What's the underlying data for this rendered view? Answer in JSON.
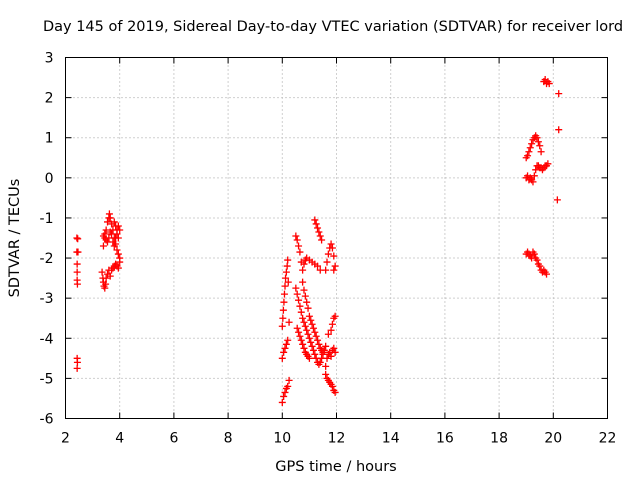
{
  "chart_data": {
    "type": "scatter",
    "title": "Day 145 of 2019, Sidereal Day-to-day VTEC variation (SDTVAR) for receiver lord",
    "xlabel": "GPS time / hours",
    "ylabel": "SDTVAR / TECUs",
    "xlim": [
      2,
      22
    ],
    "ylim": [
      -6,
      3
    ],
    "xticks": [
      2,
      4,
      6,
      8,
      10,
      12,
      14,
      16,
      18,
      20,
      22
    ],
    "xtick_labels": [
      "2",
      "4",
      "6",
      "8",
      "10",
      "12",
      "14",
      "16",
      "18",
      "20",
      "22"
    ],
    "yticks": [
      -6,
      -5,
      -4,
      -3,
      -2,
      -1,
      0,
      1,
      2,
      3
    ],
    "ytick_labels": [
      "-6",
      "-5",
      "-4",
      "-3",
      "-2",
      "-1",
      "0",
      "1",
      "2",
      "3"
    ],
    "grid": true,
    "marker": "+",
    "marker_color": "#ff0000",
    "series": [
      {
        "name": "SDTVAR",
        "points": [
          [
            2.42,
            -1.5
          ],
          [
            2.45,
            -1.52
          ],
          [
            2.42,
            -1.85
          ],
          [
            2.46,
            -1.85
          ],
          [
            2.43,
            -2.15
          ],
          [
            2.43,
            -2.35
          ],
          [
            2.43,
            -2.55
          ],
          [
            2.44,
            -2.65
          ],
          [
            2.43,
            -4.5
          ],
          [
            2.44,
            -4.6
          ],
          [
            2.43,
            -4.75
          ],
          [
            3.35,
            -2.35
          ],
          [
            3.38,
            -2.5
          ],
          [
            3.4,
            -2.6
          ],
          [
            3.42,
            -2.7
          ],
          [
            3.45,
            -2.75
          ],
          [
            3.48,
            -2.65
          ],
          [
            3.5,
            -2.5
          ],
          [
            3.55,
            -2.4
          ],
          [
            3.6,
            -2.3
          ],
          [
            3.65,
            -2.45
          ],
          [
            3.7,
            -2.3
          ],
          [
            3.75,
            -2.25
          ],
          [
            3.8,
            -2.2
          ],
          [
            3.85,
            -2.15
          ],
          [
            3.9,
            -2.2
          ],
          [
            3.95,
            -2.25
          ],
          [
            4.0,
            -2.1
          ],
          [
            3.4,
            -1.7
          ],
          [
            3.45,
            -1.5
          ],
          [
            3.5,
            -1.3
          ],
          [
            3.55,
            -1.1
          ],
          [
            3.6,
            -1.0
          ],
          [
            3.62,
            -0.9
          ],
          [
            3.65,
            -1.0
          ],
          [
            3.7,
            -1.15
          ],
          [
            3.75,
            -1.3
          ],
          [
            3.8,
            -1.5
          ],
          [
            3.85,
            -1.65
          ],
          [
            3.9,
            -1.8
          ],
          [
            3.95,
            -1.9
          ],
          [
            4.0,
            -2.0
          ],
          [
            3.4,
            -1.45
          ],
          [
            3.45,
            -1.4
          ],
          [
            3.5,
            -1.55
          ],
          [
            3.55,
            -1.6
          ],
          [
            3.6,
            -1.5
          ],
          [
            3.65,
            -1.35
          ],
          [
            3.7,
            -1.4
          ],
          [
            3.75,
            -1.6
          ],
          [
            3.8,
            -1.7
          ],
          [
            3.85,
            -1.5
          ],
          [
            3.9,
            -1.3
          ],
          [
            3.95,
            -1.2
          ],
          [
            4.0,
            -1.3
          ],
          [
            3.8,
            -1.1
          ],
          [
            3.85,
            -1.2
          ],
          [
            3.9,
            -1.4
          ],
          [
            3.95,
            -1.5
          ],
          [
            10.0,
            -5.6
          ],
          [
            10.05,
            -5.45
          ],
          [
            10.1,
            -5.35
          ],
          [
            10.15,
            -5.25
          ],
          [
            10.2,
            -5.2
          ],
          [
            10.25,
            -5.05
          ],
          [
            10.0,
            -4.5
          ],
          [
            10.05,
            -4.35
          ],
          [
            10.1,
            -4.25
          ],
          [
            10.15,
            -4.15
          ],
          [
            10.2,
            -4.05
          ],
          [
            10.0,
            -3.7
          ],
          [
            10.02,
            -3.5
          ],
          [
            10.04,
            -3.3
          ],
          [
            10.06,
            -3.1
          ],
          [
            10.08,
            -2.9
          ],
          [
            10.1,
            -2.7
          ],
          [
            10.12,
            -2.5
          ],
          [
            10.15,
            -2.35
          ],
          [
            10.18,
            -2.2
          ],
          [
            10.2,
            -2.05
          ],
          [
            10.22,
            -2.6
          ],
          [
            10.25,
            -3.6
          ],
          [
            10.5,
            -1.45
          ],
          [
            10.55,
            -1.55
          ],
          [
            10.6,
            -1.7
          ],
          [
            10.65,
            -1.85
          ],
          [
            10.7,
            -2.1
          ],
          [
            10.75,
            -2.3
          ],
          [
            10.8,
            -2.15
          ],
          [
            10.85,
            -2.05
          ],
          [
            10.9,
            -2.0
          ],
          [
            11.0,
            -2.05
          ],
          [
            11.1,
            -2.1
          ],
          [
            11.2,
            -2.15
          ],
          [
            11.3,
            -2.2
          ],
          [
            11.4,
            -2.3
          ],
          [
            10.5,
            -2.75
          ],
          [
            10.55,
            -2.9
          ],
          [
            10.6,
            -3.05
          ],
          [
            10.65,
            -3.2
          ],
          [
            10.7,
            -3.35
          ],
          [
            10.75,
            -3.5
          ],
          [
            10.8,
            -3.6
          ],
          [
            10.85,
            -3.7
          ],
          [
            10.9,
            -3.8
          ],
          [
            10.95,
            -3.9
          ],
          [
            11.0,
            -4.0
          ],
          [
            11.05,
            -4.1
          ],
          [
            11.1,
            -4.2
          ],
          [
            11.15,
            -4.3
          ],
          [
            11.2,
            -4.4
          ],
          [
            11.25,
            -4.5
          ],
          [
            11.3,
            -4.6
          ],
          [
            11.35,
            -4.65
          ],
          [
            11.4,
            -4.6
          ],
          [
            11.45,
            -4.5
          ],
          [
            11.5,
            -4.4
          ],
          [
            10.55,
            -3.75
          ],
          [
            10.6,
            -3.85
          ],
          [
            10.65,
            -3.95
          ],
          [
            10.7,
            -4.05
          ],
          [
            10.75,
            -4.15
          ],
          [
            10.8,
            -4.25
          ],
          [
            10.85,
            -4.35
          ],
          [
            10.9,
            -4.4
          ],
          [
            10.95,
            -4.45
          ],
          [
            11.0,
            -4.5
          ],
          [
            10.75,
            -2.6
          ],
          [
            10.8,
            -2.8
          ],
          [
            10.85,
            -2.95
          ],
          [
            10.9,
            -3.1
          ],
          [
            10.95,
            -3.25
          ],
          [
            11.0,
            -3.45
          ],
          [
            11.05,
            -3.55
          ],
          [
            11.1,
            -3.65
          ],
          [
            11.15,
            -3.75
          ],
          [
            11.2,
            -3.85
          ],
          [
            11.25,
            -3.95
          ],
          [
            11.3,
            -4.05
          ],
          [
            11.35,
            -4.15
          ],
          [
            11.4,
            -4.25
          ],
          [
            11.45,
            -4.3
          ],
          [
            11.5,
            -4.35
          ],
          [
            11.55,
            -4.3
          ],
          [
            11.6,
            -4.2
          ],
          [
            11.2,
            -1.05
          ],
          [
            11.25,
            -1.15
          ],
          [
            11.3,
            -1.25
          ],
          [
            11.35,
            -1.35
          ],
          [
            11.4,
            -1.45
          ],
          [
            11.45,
            -1.55
          ],
          [
            11.6,
            -2.3
          ],
          [
            11.65,
            -2.1
          ],
          [
            11.7,
            -1.9
          ],
          [
            11.75,
            -1.75
          ],
          [
            11.8,
            -1.65
          ],
          [
            11.85,
            -1.75
          ],
          [
            11.9,
            -1.95
          ],
          [
            11.95,
            -2.2
          ],
          [
            11.9,
            -2.3
          ],
          [
            11.6,
            -4.7
          ],
          [
            11.65,
            -4.5
          ],
          [
            11.7,
            -4.4
          ],
          [
            11.75,
            -4.35
          ],
          [
            11.8,
            -4.45
          ],
          [
            11.85,
            -4.3
          ],
          [
            11.9,
            -4.25
          ],
          [
            11.95,
            -4.35
          ],
          [
            11.6,
            -4.9
          ],
          [
            11.65,
            -5.0
          ],
          [
            11.7,
            -5.05
          ],
          [
            11.75,
            -5.1
          ],
          [
            11.8,
            -5.15
          ],
          [
            11.85,
            -5.2
          ],
          [
            11.9,
            -5.3
          ],
          [
            11.95,
            -5.35
          ],
          [
            11.8,
            -3.8
          ],
          [
            11.85,
            -3.65
          ],
          [
            11.9,
            -3.5
          ],
          [
            11.95,
            -3.45
          ],
          [
            11.7,
            -3.9
          ],
          [
            19.0,
            0.5
          ],
          [
            19.05,
            0.55
          ],
          [
            19.1,
            0.65
          ],
          [
            19.15,
            0.75
          ],
          [
            19.2,
            0.85
          ],
          [
            19.25,
            0.95
          ],
          [
            19.3,
            1.0
          ],
          [
            19.35,
            1.05
          ],
          [
            19.4,
            1.0
          ],
          [
            19.45,
            0.9
          ],
          [
            19.5,
            0.8
          ],
          [
            19.55,
            0.65
          ],
          [
            19.0,
            0.0
          ],
          [
            19.05,
            0.05
          ],
          [
            19.1,
            -0.05
          ],
          [
            19.15,
            0.0
          ],
          [
            19.2,
            -0.05
          ],
          [
            19.25,
            -0.1
          ],
          [
            19.3,
            0.05
          ],
          [
            19.35,
            0.2
          ],
          [
            19.4,
            0.3
          ],
          [
            19.45,
            0.3
          ],
          [
            19.5,
            0.25
          ],
          [
            19.55,
            0.25
          ],
          [
            19.6,
            0.2
          ],
          [
            19.65,
            0.25
          ],
          [
            19.7,
            0.3
          ],
          [
            19.75,
            0.3
          ],
          [
            19.8,
            0.35
          ],
          [
            19.0,
            -1.9
          ],
          [
            19.05,
            -1.85
          ],
          [
            19.1,
            -1.9
          ],
          [
            19.15,
            -1.95
          ],
          [
            19.2,
            -2.0
          ],
          [
            19.25,
            -1.85
          ],
          [
            19.3,
            -1.9
          ],
          [
            19.35,
            -2.0
          ],
          [
            19.4,
            -2.05
          ],
          [
            19.45,
            -2.15
          ],
          [
            19.5,
            -2.2
          ],
          [
            19.55,
            -2.3
          ],
          [
            19.6,
            -2.35
          ],
          [
            19.65,
            -2.3
          ],
          [
            19.7,
            -2.35
          ],
          [
            19.75,
            -2.4
          ],
          [
            19.65,
            2.4
          ],
          [
            19.7,
            2.45
          ],
          [
            19.75,
            2.35
          ],
          [
            19.8,
            2.4
          ],
          [
            19.85,
            2.35
          ],
          [
            20.2,
            2.1
          ],
          [
            20.2,
            1.2
          ],
          [
            20.15,
            -0.55
          ]
        ]
      }
    ]
  }
}
